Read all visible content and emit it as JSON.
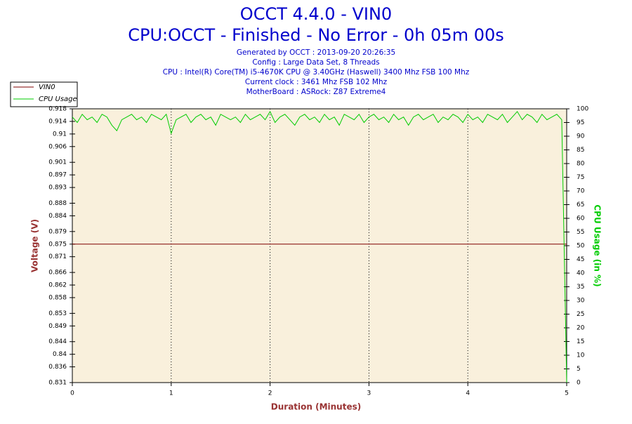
{
  "chart_data": {
    "type": "line",
    "title": "OCCT 4.4.0 - VIN0",
    "subtitle": "CPU:OCCT - Finished - No Error - 0h 05m 00s",
    "info": [
      "Generated by OCCT : 2013-09-20 20:26:35",
      "Config : Large Data Set, 8 Threads",
      "CPU : Intel(R) Core(TM) i5-4670K CPU @ 3.40GHz (Haswell) 3400 Mhz FSB 100 Mhz",
      "Current clock : 3461 Mhz FSB 102 Mhz",
      "MotherBoard : ASRock: Z87 Extreme4"
    ],
    "xlabel": "Duration (Minutes)",
    "ylabel": "Voltage (V)",
    "y2label": "CPU Usage (in %)",
    "xlim": [
      0,
      5
    ],
    "xticks": [
      0,
      1,
      2,
      3,
      4,
      5
    ],
    "ylim": [
      0.831,
      0.918
    ],
    "yticks": [
      0.831,
      0.836,
      0.84,
      0.844,
      0.849,
      0.853,
      0.858,
      0.862,
      0.866,
      0.871,
      0.875,
      0.879,
      0.884,
      0.888,
      0.893,
      0.897,
      0.901,
      0.906,
      0.91,
      0.914,
      0.918
    ],
    "y2lim": [
      0,
      100
    ],
    "y2ticks": [
      0,
      5,
      10,
      15,
      20,
      25,
      30,
      35,
      40,
      45,
      50,
      55,
      60,
      65,
      70,
      75,
      80,
      85,
      90,
      95,
      100
    ],
    "grid": true,
    "legend": "top-left",
    "series": [
      {
        "name": "VIN0",
        "color": "#800000",
        "x": [
          0,
          5
        ],
        "values": [
          0.875,
          0.875
        ]
      },
      {
        "name": "CPU Usage",
        "color": "#00cc00",
        "axis": "y2",
        "x": [
          0,
          0.05,
          0.1,
          0.15,
          0.2,
          0.25,
          0.3,
          0.35,
          0.4,
          0.45,
          0.5,
          0.55,
          0.6,
          0.65,
          0.7,
          0.75,
          0.8,
          0.85,
          0.9,
          0.95,
          1,
          1.05,
          1.1,
          1.15,
          1.2,
          1.25,
          1.3,
          1.35,
          1.4,
          1.45,
          1.5,
          1.55,
          1.6,
          1.65,
          1.7,
          1.75,
          1.8,
          1.85,
          1.9,
          1.95,
          2,
          2.05,
          2.1,
          2.15,
          2.2,
          2.25,
          2.3,
          2.35,
          2.4,
          2.45,
          2.5,
          2.55,
          2.6,
          2.65,
          2.7,
          2.75,
          2.8,
          2.85,
          2.9,
          2.95,
          3,
          3.05,
          3.1,
          3.15,
          3.2,
          3.25,
          3.3,
          3.35,
          3.4,
          3.45,
          3.5,
          3.55,
          3.6,
          3.65,
          3.7,
          3.75,
          3.8,
          3.85,
          3.9,
          3.95,
          4,
          4.05,
          4.1,
          4.15,
          4.2,
          4.25,
          4.3,
          4.35,
          4.4,
          4.45,
          4.5,
          4.55,
          4.6,
          4.65,
          4.7,
          4.75,
          4.8,
          4.85,
          4.9,
          4.95,
          5
        ],
        "values": [
          97,
          95,
          98,
          96,
          97,
          95,
          98,
          97,
          94,
          92,
          96,
          97,
          98,
          96,
          97,
          95,
          98,
          97,
          96,
          98,
          91,
          96,
          97,
          98,
          95,
          97,
          98,
          96,
          97,
          94,
          98,
          97,
          96,
          97,
          95,
          98,
          96,
          97,
          98,
          96,
          99,
          95,
          97,
          98,
          96,
          94,
          97,
          98,
          96,
          97,
          95,
          98,
          96,
          97,
          94,
          98,
          97,
          96,
          98,
          95,
          97,
          98,
          96,
          97,
          95,
          98,
          96,
          97,
          94,
          97,
          98,
          96,
          97,
          98,
          95,
          97,
          96,
          98,
          97,
          95,
          98,
          96,
          97,
          95,
          98,
          97,
          96,
          98,
          95,
          97,
          99,
          96,
          98,
          97,
          95,
          98,
          96,
          97,
          98,
          96,
          0
        ]
      }
    ]
  }
}
